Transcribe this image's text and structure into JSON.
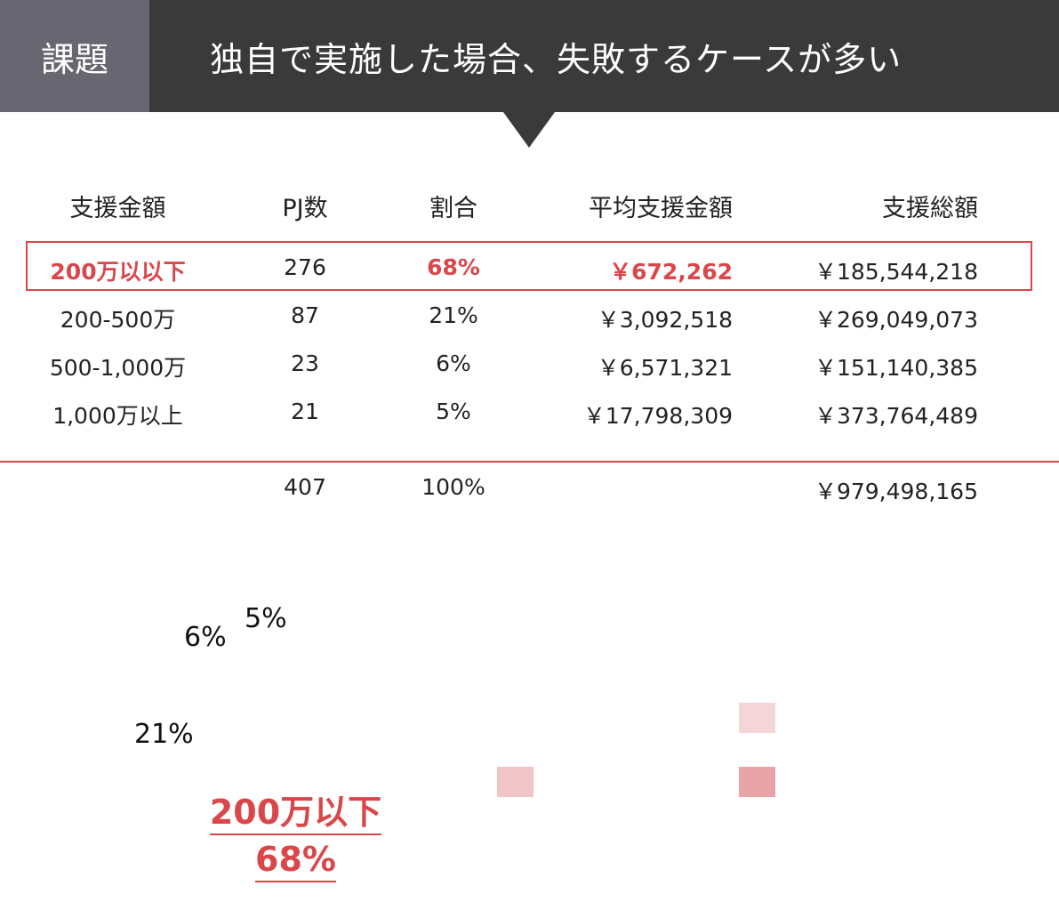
{
  "header": {
    "tag": "課題",
    "title": "独自で実施した場合、失敗するケースが多い"
  },
  "table": {
    "columns": [
      "支援金額",
      "PJ数",
      "割合",
      "平均支援金額",
      "支援総額"
    ],
    "rows": [
      {
        "range": "200万以以下",
        "count": "276",
        "share": "68%",
        "average": "￥672,262",
        "total": "￥185,544,218",
        "highlight": true
      },
      {
        "range": "200-500万",
        "count": "87",
        "share": "21%",
        "average": "￥3,092,518",
        "total": "￥269,049,073",
        "highlight": false
      },
      {
        "range": "500-1,000万",
        "count": "23",
        "share": "6%",
        "average": "￥6,571,321",
        "total": "￥151,140,385",
        "highlight": false
      },
      {
        "range": "1,000万以上",
        "count": "21",
        "share": "5%",
        "average": "￥17,798,309",
        "total": "￥373,764,489",
        "highlight": false
      }
    ],
    "totals": {
      "count": "407",
      "share": "100%",
      "total": "￥979,498,165"
    }
  },
  "chart_data": {
    "type": "pie",
    "labels": [
      "200万以以下",
      "200-500万",
      "500-1,000万",
      "1,000万以上"
    ],
    "values": [
      68,
      21,
      6,
      5
    ],
    "data_labels": [
      "68%",
      "21%",
      "6%",
      "5%"
    ],
    "callout": {
      "label": "200万以下",
      "value": "68%"
    }
  },
  "colors": {
    "accent": "#d9474b",
    "header_bg": "#3a3a3a",
    "tag_bg": "#686670",
    "swatch_light": "#f5d6d8",
    "swatch_mid": "#f1c5c8",
    "swatch_strong": "#e9a4a7"
  }
}
